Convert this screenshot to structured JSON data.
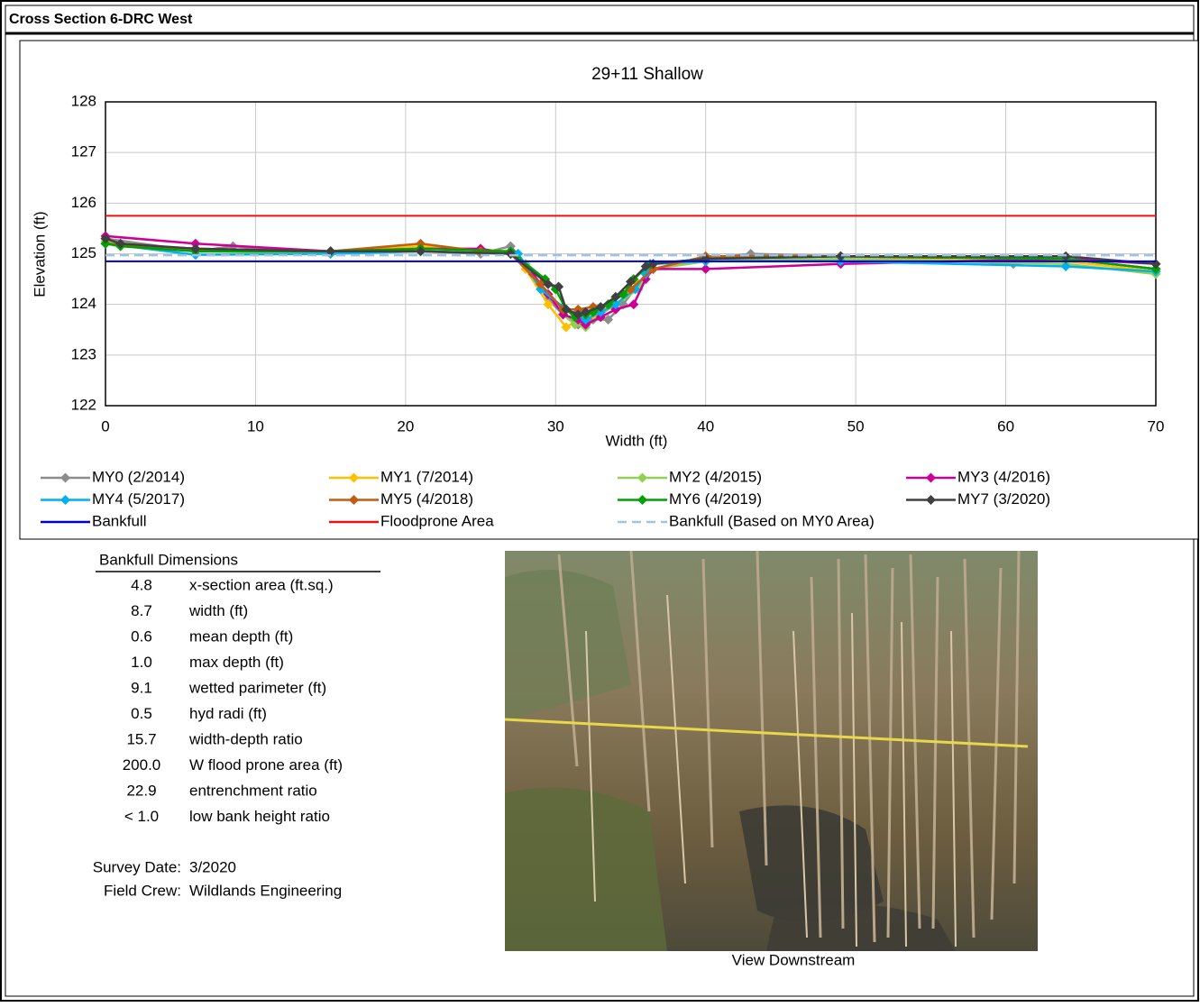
{
  "header": {
    "title": "Cross Section  6-DRC West"
  },
  "chart_data": {
    "type": "line",
    "title": "29+11 Shallow",
    "xlabel": "Width (ft)",
    "ylabel": "Elevation (ft)",
    "xlim": [
      0,
      70
    ],
    "xticks": [
      0,
      10,
      20,
      30,
      40,
      50,
      60,
      70
    ],
    "ylim": [
      122,
      128
    ],
    "yticks": [
      122,
      123,
      124,
      125,
      126,
      127,
      128
    ],
    "grid": true,
    "series": [
      {
        "name": "MY0 (2/2014)",
        "color": "#8c8c8c",
        "marker": "diamond",
        "x": [
          0,
          6,
          8.5,
          15,
          21,
          25,
          27,
          28,
          29.5,
          30.5,
          31.5,
          32.5,
          33.5,
          34.5,
          35.5,
          36.5,
          40,
          43,
          49,
          55,
          60.5,
          64,
          70
        ],
        "values": [
          125.3,
          125.05,
          125.15,
          125.0,
          125.05,
          125.0,
          125.15,
          124.8,
          124.1,
          123.8,
          123.6,
          123.7,
          123.7,
          124.0,
          124.4,
          124.8,
          124.9,
          125.0,
          124.95,
          124.9,
          124.8,
          124.9,
          124.7
        ]
      },
      {
        "name": "MY1 (7/2014)",
        "color": "#ffc000",
        "marker": "diamond",
        "x": [
          0,
          6,
          15,
          21,
          27,
          28,
          29.5,
          30.7,
          31.5,
          32.5,
          34,
          35.5,
          36.5,
          40,
          49,
          64,
          70
        ],
        "values": [
          125.2,
          125.1,
          125.05,
          125.15,
          125.0,
          124.7,
          124.0,
          123.55,
          123.7,
          123.8,
          124.0,
          124.4,
          124.7,
          124.85,
          124.9,
          124.85,
          124.65
        ]
      },
      {
        "name": "MY2 (4/2015)",
        "color": "#92d050",
        "marker": "diamond",
        "x": [
          0,
          6,
          15,
          21,
          27,
          28,
          29.5,
          30.5,
          31.3,
          32,
          33,
          34,
          35.5,
          36.5,
          40,
          49,
          64,
          70
        ],
        "values": [
          125.25,
          125.05,
          125.0,
          125.05,
          125.0,
          124.8,
          124.2,
          123.8,
          123.6,
          123.55,
          123.8,
          124.0,
          124.3,
          124.7,
          124.85,
          124.9,
          124.8,
          124.6
        ]
      },
      {
        "name": "MY3 (4/2016)",
        "color": "#cc0099",
        "marker": "diamond",
        "x": [
          0,
          6,
          15,
          21,
          25,
          27,
          28.5,
          29.5,
          30.5,
          31.5,
          32,
          33,
          34,
          35.2,
          36,
          36.5,
          40,
          49,
          64,
          70
        ],
        "values": [
          125.35,
          125.2,
          125.05,
          125.1,
          125.1,
          125.0,
          124.6,
          124.2,
          123.8,
          123.7,
          123.6,
          123.75,
          123.9,
          124.0,
          124.5,
          124.7,
          124.7,
          124.8,
          124.9,
          124.8
        ]
      },
      {
        "name": "MY4 (5/2017)",
        "color": "#00b0f0",
        "marker": "diamond",
        "x": [
          0,
          6,
          15,
          21,
          27,
          27.5,
          29,
          30.5,
          31.3,
          32,
          33,
          34,
          35.3,
          36,
          36.5,
          40,
          49,
          64,
          70
        ],
        "values": [
          125.2,
          124.98,
          125.0,
          125.05,
          125.0,
          125.0,
          124.3,
          123.95,
          123.8,
          123.7,
          123.85,
          124.0,
          124.3,
          124.6,
          124.8,
          124.85,
          124.85,
          124.75,
          124.65
        ]
      },
      {
        "name": "MY5 (4/2018)",
        "color": "#c55a11",
        "marker": "diamond",
        "x": [
          0,
          6,
          15,
          21,
          25,
          27,
          29,
          30.5,
          31.5,
          32.5,
          33.5,
          35,
          36.5,
          40,
          49,
          64,
          70
        ],
        "values": [
          125.2,
          125.1,
          125.05,
          125.2,
          125.05,
          125.0,
          124.4,
          123.9,
          123.9,
          123.95,
          124.0,
          124.3,
          124.7,
          124.95,
          124.95,
          124.9,
          124.7
        ]
      },
      {
        "name": "MY6 (4/2019)",
        "color": "#00a000",
        "marker": "diamond",
        "x": [
          0,
          1,
          6,
          15,
          21,
          27,
          29.3,
          30,
          30.7,
          31.3,
          32,
          32.5,
          33.5,
          34.5,
          35.2,
          36.3,
          40,
          49,
          64,
          70
        ],
        "values": [
          125.2,
          125.15,
          125.05,
          125.05,
          125.1,
          125.05,
          124.5,
          124.3,
          123.9,
          123.75,
          123.8,
          123.85,
          124.0,
          124.2,
          124.5,
          124.8,
          124.9,
          124.95,
          124.9,
          124.7
        ]
      },
      {
        "name": "MY7 (3/2020)",
        "color": "#404040",
        "marker": "diamond",
        "x": [
          0,
          1,
          6,
          15,
          21,
          27,
          29.5,
          30.2,
          30.7,
          31.5,
          32,
          33,
          34,
          35,
          36,
          36.5,
          40,
          49,
          64,
          70
        ],
        "values": [
          125.3,
          125.2,
          125.1,
          125.05,
          125.05,
          125.0,
          124.4,
          124.35,
          123.9,
          123.8,
          123.85,
          123.95,
          124.15,
          124.45,
          124.75,
          124.8,
          124.9,
          124.95,
          124.95,
          124.8
        ]
      },
      {
        "name": "Bankfull",
        "color": "#0000cc",
        "x": [
          0,
          70
        ],
        "values": [
          124.85,
          124.85
        ]
      },
      {
        "name": "Floodprone Area",
        "color": "#ee1111",
        "x": [
          0,
          70
        ],
        "values": [
          125.75,
          125.75
        ]
      },
      {
        "name": "Bankfull (Based on MY0 Area)",
        "color": "#9dc3e6",
        "dash": true,
        "x": [
          0,
          70
        ],
        "values": [
          124.97,
          124.97
        ]
      }
    ]
  },
  "dimensions": {
    "title": "Bankfull Dimensions",
    "rows": [
      [
        "4.8",
        "x-section area (ft.sq.)"
      ],
      [
        "8.7",
        "width (ft)"
      ],
      [
        "0.6",
        "mean depth (ft)"
      ],
      [
        "1.0",
        "max depth (ft)"
      ],
      [
        "9.1",
        "wetted parimeter (ft)"
      ],
      [
        "0.5",
        "hyd radi (ft)"
      ],
      [
        "15.7",
        "width-depth ratio"
      ],
      [
        "200.0",
        "W flood prone area (ft)"
      ],
      [
        "22.9",
        "entrenchment ratio"
      ],
      [
        "< 1.0",
        "low bank height ratio"
      ]
    ]
  },
  "survey": {
    "rows": [
      [
        "Survey Date:",
        "3/2020"
      ],
      [
        "Field Crew:",
        "Wildlands Engineering"
      ]
    ]
  },
  "photo": {
    "caption": "View Downstream"
  }
}
